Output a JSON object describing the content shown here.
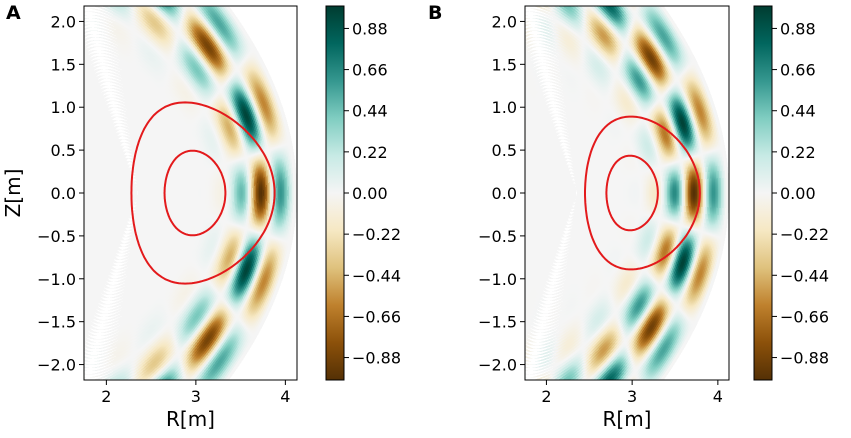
{
  "chart_data": [
    {
      "type": "heatmap",
      "panel": "A",
      "title": "",
      "xlabel": "R[m]",
      "ylabel": "Z[m]",
      "xticks": [
        2,
        3,
        4
      ],
      "yticks": [
        -2.0,
        -1.5,
        -1.0,
        -0.5,
        0.0,
        0.5,
        1.0,
        1.5,
        2.0
      ],
      "xlim": [
        1.75,
        4.13
      ],
      "ylim": [
        -2.18,
        2.18
      ],
      "plasma_boundary": {
        "R0": 2.35,
        "a": 1.75,
        "kappa": 2.12,
        "delta": 0.55
      },
      "contours": [
        {
          "name": "outer surface",
          "color": "#e31a1c",
          "R0": 3.08,
          "a": 0.8,
          "kappa": 1.32,
          "delta": 0.25
        },
        {
          "name": "inner surface",
          "color": "#e31a1c",
          "R0": 2.99,
          "a": 0.34,
          "kappa": 1.45,
          "delta": 0.08
        }
      ],
      "wave": {
        "rho_center": 0.8,
        "rho_width": 0.17,
        "k_rho": 22,
        "m_theta": 10,
        "amplitude_scale": 1.0
      },
      "colorbar": {
        "ticks": [
          "0.88",
          "0.66",
          "0.44",
          "0.22",
          "0.00",
          "−0.22",
          "−0.44",
          "−0.66",
          "−0.88"
        ],
        "min": -1.0,
        "max": 1.0,
        "colormap": "BrBG"
      }
    },
    {
      "type": "heatmap",
      "panel": "B",
      "title": "",
      "xlabel": "R[m]",
      "ylabel": "",
      "xticks": [
        2,
        3,
        4
      ],
      "yticks": [
        -2.0,
        -1.5,
        -1.0,
        -0.5,
        0.0,
        0.5,
        1.0,
        1.5,
        2.0
      ],
      "xlim": [
        1.75,
        4.13
      ],
      "ylim": [
        -2.18,
        2.18
      ],
      "plasma_boundary": {
        "R0": 2.35,
        "a": 1.75,
        "kappa": 2.12,
        "delta": 0.55
      },
      "contours": [
        {
          "name": "outer surface",
          "color": "#e31a1c",
          "R0": 3.12,
          "a": 0.67,
          "kappa": 1.33,
          "delta": 0.2
        },
        {
          "name": "inner surface",
          "color": "#e31a1c",
          "R0": 3.0,
          "a": 0.3,
          "kappa": 1.45,
          "delta": 0.08
        }
      ],
      "wave": {
        "rho_center": 0.78,
        "rho_width": 0.2,
        "k_rho": 22,
        "m_theta": 11,
        "amplitude_scale": 1.0
      },
      "colorbar": {
        "ticks": [
          "0.88",
          "0.66",
          "0.44",
          "0.22",
          "0.00",
          "−0.22",
          "−0.44",
          "−0.66",
          "−0.88"
        ],
        "min": -1.0,
        "max": 1.0,
        "colormap": "BrBG"
      }
    }
  ]
}
